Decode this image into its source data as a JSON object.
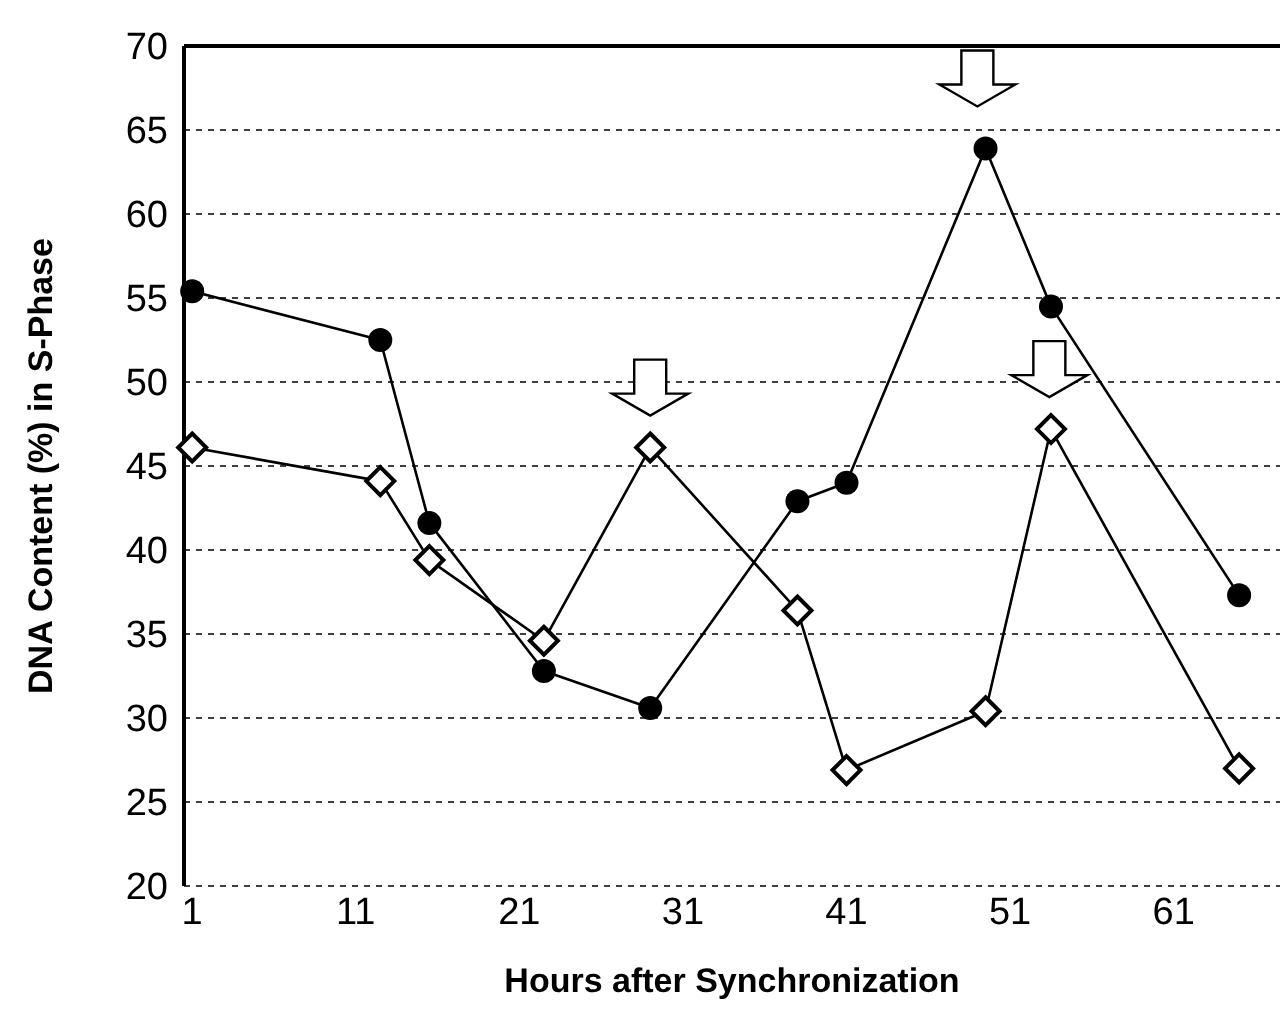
{
  "chart_data": {
    "type": "line",
    "xlabel": "Hours after Synchronization",
    "ylabel": "DNA Content (%) in S-Phase",
    "x": [
      1,
      12.5,
      15.5,
      22.5,
      29,
      38,
      41,
      49.5,
      53.5,
      65
    ],
    "series": [
      {
        "color": "#000000",
        "marker": "circle",
        "values": [
          55.4,
          52.5,
          41.6,
          32.8,
          30.6,
          42.9,
          44,
          63.9,
          54.5,
          37.3
        ]
      },
      {
        "color": "#000000",
        "marker": "diamond",
        "values": [
          46.1,
          44.1,
          39.4,
          34.6,
          46.1,
          36.4,
          26.9,
          30.4,
          47.2,
          27
        ]
      }
    ],
    "xlim": [
      0.5,
      67.5
    ],
    "xticks": [
      1,
      11,
      21,
      31,
      41,
      51,
      61
    ],
    "ylim": [
      20,
      70
    ],
    "yticks": [
      20,
      25,
      30,
      35,
      40,
      45,
      50,
      55,
      60,
      65,
      70
    ],
    "grid": "y",
    "line_style": "solid"
  }
}
